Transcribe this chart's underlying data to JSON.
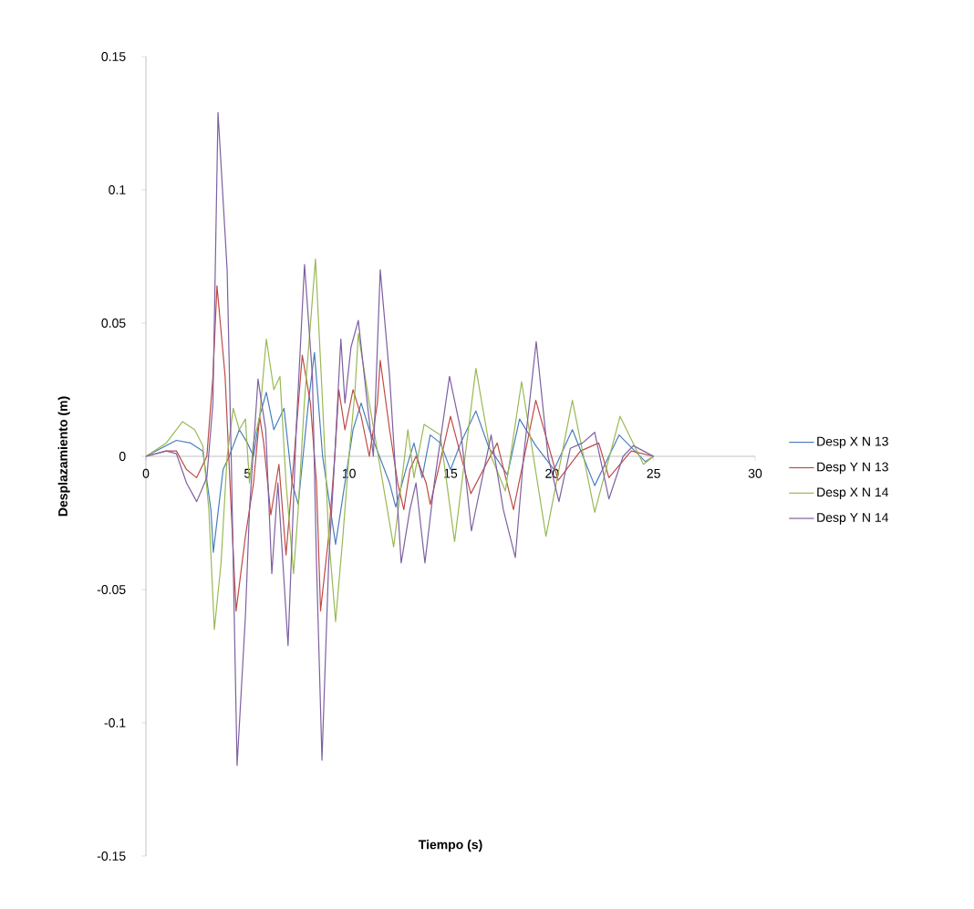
{
  "chart_data": {
    "type": "line",
    "xlabel": "Tiempo (s)",
    "ylabel": "Desplazamiento (m)",
    "xlim": [
      0,
      30
    ],
    "xticks": [
      0,
      5,
      10,
      15,
      20,
      25,
      30
    ],
    "ylim": [
      -0.15,
      0.15
    ],
    "yticks": [
      -0.15,
      -0.1,
      -0.05,
      0,
      0.05,
      0.1,
      0.15
    ],
    "grid": false,
    "legend": "right",
    "marker": "none",
    "line_style": "solid",
    "series": [
      {
        "name": "Desp X N 13",
        "color": "#4a7ebb",
        "x": [
          0,
          1,
          1.5,
          2.2,
          2.8,
          3.2,
          3.32,
          3.8,
          4.1,
          4.6,
          5.0,
          5.3,
          5.6,
          5.93,
          6.3,
          6.8,
          7.2,
          7.5,
          8.0,
          8.3,
          8.7,
          9.34,
          9.7,
          10.2,
          10.6,
          11.0,
          11.5,
          12.0,
          12.3,
          12.8,
          13.2,
          13.6,
          14.0,
          14.5,
          15.0,
          15.5,
          16.25,
          16.9,
          17.2,
          17.8,
          18.4,
          19.2,
          20.1,
          21.0,
          22.1,
          23.3,
          24.6,
          25
        ],
        "values": [
          0,
          0.004,
          0.006,
          0.005,
          0.002,
          -0.02,
          -0.036,
          -0.005,
          0,
          0.01,
          0.005,
          0,
          0.015,
          0.024,
          0.01,
          0.018,
          -0.01,
          -0.018,
          0.02,
          0.039,
          0,
          -0.033,
          -0.015,
          0.01,
          0.02,
          0.01,
          0,
          -0.01,
          -0.019,
          -0.005,
          0.005,
          -0.008,
          0.008,
          0.005,
          -0.005,
          0.005,
          0.017,
          0.003,
          0,
          -0.007,
          0.014,
          0.004,
          -0.005,
          0.01,
          -0.011,
          0.008,
          -0.002,
          0
        ]
      },
      {
        "name": "Desp Y N 13",
        "color": "#be4b48",
        "x": [
          0,
          1,
          1.5,
          2.0,
          2.5,
          3.0,
          3.3,
          3.5,
          3.9,
          4.2,
          4.44,
          4.9,
          5.3,
          5.6,
          5.8,
          6.15,
          6.55,
          6.9,
          7.3,
          7.7,
          8.1,
          8.4,
          8.6,
          9.0,
          9.3,
          9.5,
          9.8,
          10.2,
          10.6,
          11.0,
          11.4,
          11.54,
          12.0,
          12.4,
          12.7,
          13.0,
          13.3,
          13.8,
          14.0,
          14.4,
          15.0,
          16.0,
          17.3,
          18.1,
          19.2,
          20.3,
          21.4,
          22.3,
          22.8,
          23.9,
          25
        ],
        "values": [
          0,
          0.002,
          0.002,
          -0.005,
          -0.008,
          0,
          0.03,
          0.064,
          0.03,
          -0.02,
          -0.058,
          -0.03,
          -0.01,
          0.015,
          0.005,
          -0.022,
          -0.003,
          -0.037,
          0,
          0.038,
          0.02,
          -0.01,
          -0.058,
          -0.03,
          0,
          0.025,
          0.01,
          0.025,
          0.015,
          0,
          0.02,
          0.036,
          0.01,
          -0.01,
          -0.02,
          -0.005,
          0,
          -0.01,
          -0.018,
          -0.005,
          0.015,
          -0.014,
          0.005,
          -0.02,
          0.021,
          -0.009,
          0.002,
          0.005,
          -0.008,
          0.002,
          0
        ]
      },
      {
        "name": "Desp X N 14",
        "color": "#98b954",
        "x": [
          0,
          1,
          1.8,
          2.4,
          2.8,
          3.1,
          3.37,
          3.7,
          4.0,
          4.3,
          4.6,
          4.9,
          5.1,
          5.3,
          5.6,
          5.93,
          6.3,
          6.6,
          6.9,
          7.27,
          7.5,
          7.8,
          8.35,
          8.7,
          9.0,
          9.34,
          9.7,
          10.0,
          10.3,
          10.46,
          11.0,
          12.2,
          12.9,
          13.2,
          13.7,
          14.5,
          15.2,
          16.25,
          17.0,
          17.7,
          18.5,
          19.7,
          21.0,
          22.1,
          23.35,
          24.5,
          25
        ],
        "values": [
          0,
          0.005,
          0.013,
          0.01,
          0.004,
          -0.02,
          -0.065,
          -0.04,
          0,
          0.018,
          0.01,
          0.014,
          -0.01,
          0.005,
          0.015,
          0.044,
          0.025,
          0.03,
          -0.01,
          -0.044,
          -0.02,
          0.02,
          0.074,
          0.02,
          -0.03,
          -0.062,
          -0.03,
          0,
          0.025,
          0.046,
          0.02,
          -0.034,
          0.01,
          -0.008,
          0.012,
          0.008,
          -0.032,
          0.033,
          0,
          -0.013,
          0.028,
          -0.03,
          0.021,
          -0.021,
          0.015,
          -0.003,
          0
        ]
      },
      {
        "name": "Desp Y N 14",
        "color": "#7d60a0",
        "x": [
          0,
          1,
          1.5,
          2.0,
          2.5,
          3.0,
          3.3,
          3.55,
          4.0,
          4.2,
          4.49,
          4.9,
          5.1,
          5.52,
          5.9,
          6.2,
          6.5,
          7.0,
          7.4,
          7.81,
          8.2,
          8.4,
          8.67,
          9.0,
          9.3,
          9.6,
          9.8,
          10.1,
          10.46,
          10.9,
          11.2,
          11.54,
          12.0,
          12.57,
          13.0,
          13.3,
          13.74,
          14.2,
          14.95,
          15.5,
          16.03,
          16.7,
          17.0,
          17.6,
          18.19,
          18.6,
          19.22,
          19.8,
          20.34,
          20.9,
          21.5,
          22.1,
          22.8,
          23.5,
          24.0,
          24.5,
          25
        ],
        "values": [
          0,
          0.002,
          0.001,
          -0.01,
          -0.017,
          -0.008,
          0.02,
          0.129,
          0.07,
          0,
          -0.116,
          -0.06,
          -0.02,
          0.029,
          0.01,
          -0.044,
          -0.01,
          -0.071,
          0.01,
          0.072,
          0.03,
          -0.04,
          -0.114,
          -0.04,
          0,
          0.044,
          0.02,
          0.041,
          0.051,
          0.02,
          0,
          0.07,
          0.03,
          -0.04,
          -0.02,
          -0.01,
          -0.04,
          -0.01,
          0.03,
          0.01,
          -0.028,
          -0.003,
          0.008,
          -0.02,
          -0.038,
          0,
          0.043,
          0,
          -0.017,
          0.003,
          0.005,
          0.009,
          -0.016,
          0,
          0.004,
          0.002,
          0
        ]
      }
    ]
  }
}
